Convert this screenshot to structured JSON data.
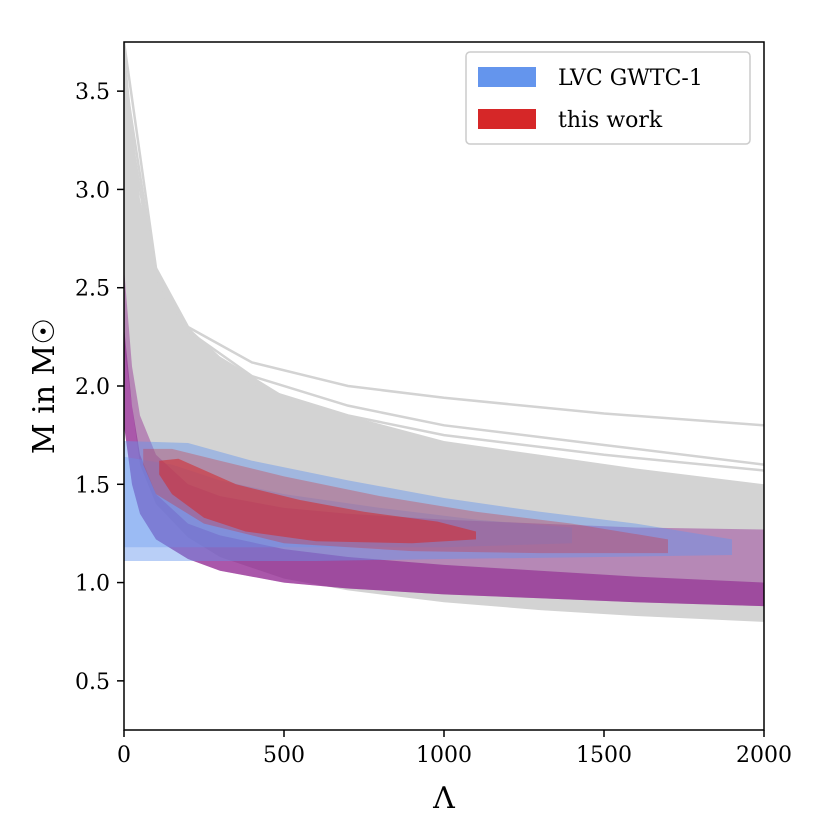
{
  "chart_data": {
    "type": "area",
    "title": "",
    "xlabel": "Λ",
    "ylabel": "M in M☉",
    "xlim": [
      0,
      2000
    ],
    "ylim": [
      0.25,
      3.75
    ],
    "xticks": [
      0,
      500,
      1000,
      1500,
      2000
    ],
    "yticks": [
      0.5,
      1.0,
      1.5,
      2.0,
      2.5,
      3.0,
      3.5
    ],
    "xtick_labels": [
      "0",
      "500",
      "1000",
      "1500",
      "2000"
    ],
    "ytick_labels": [
      "0.5",
      "1.0",
      "1.5",
      "2.0",
      "2.5",
      "3.0",
      "3.5"
    ],
    "legend_position": "top-right",
    "legend": [
      {
        "label": "LVC GWTC-1",
        "color": "#6495ed"
      },
      {
        "label": "this work",
        "color": "#d62728"
      }
    ],
    "series": [
      {
        "name": "EOS prior band (grey)",
        "color": "#d3d3d3",
        "upper": {
          "x": [
            0,
            50,
            100,
            200,
            300,
            500,
            700,
            1000,
            1300,
            1600,
            2000
          ],
          "y": [
            3.75,
            2.95,
            2.6,
            2.3,
            2.15,
            1.95,
            1.85,
            1.72,
            1.65,
            1.58,
            1.5
          ]
        },
        "lower": {
          "x": [
            0,
            50,
            100,
            200,
            300,
            500,
            700,
            1000,
            1300,
            1600,
            2000
          ],
          "y": [
            2.2,
            1.6,
            1.4,
            1.23,
            1.13,
            1.02,
            0.96,
            0.9,
            0.86,
            0.83,
            0.8
          ]
        },
        "stiff_lines": [
          {
            "x": [
              0,
              100,
              200,
              400,
              700,
              1000,
              1500,
              2000
            ],
            "y": [
              3.75,
              2.6,
              2.3,
              2.12,
              2.0,
              1.94,
              1.86,
              1.8
            ]
          },
          {
            "x": [
              0,
              100,
              200,
              400,
              700,
              1000,
              1500,
              2000
            ],
            "y": [
              3.6,
              2.55,
              2.28,
              2.05,
              1.9,
              1.8,
              1.7,
              1.6
            ]
          },
          {
            "x": [
              0,
              100,
              200,
              400,
              700,
              1000,
              1500,
              2000
            ],
            "y": [
              3.5,
              2.5,
              2.25,
              2.0,
              1.85,
              1.75,
              1.65,
              1.57
            ]
          }
        ]
      },
      {
        "name": "EOS posterior band (purple)",
        "color": "#8b1a8b",
        "upper": {
          "x": [
            0,
            25,
            50,
            100,
            200,
            300,
            500,
            700,
            1000,
            1300,
            1600,
            2000
          ],
          "y": [
            2.6,
            2.1,
            1.85,
            1.65,
            1.5,
            1.44,
            1.38,
            1.35,
            1.32,
            1.3,
            1.28,
            1.27
          ]
        },
        "core_upper": {
          "x": [
            0,
            25,
            50,
            100,
            200,
            300,
            500,
            700,
            1000,
            1300,
            1600,
            2000
          ],
          "y": [
            2.3,
            1.9,
            1.65,
            1.45,
            1.3,
            1.24,
            1.17,
            1.13,
            1.09,
            1.06,
            1.03,
            1.0
          ]
        },
        "lower": {
          "x": [
            0,
            25,
            50,
            100,
            200,
            300,
            500,
            700,
            1000,
            1300,
            1600,
            2000
          ],
          "y": [
            1.8,
            1.5,
            1.35,
            1.22,
            1.12,
            1.06,
            1.0,
            0.97,
            0.94,
            0.92,
            0.9,
            0.88
          ]
        }
      },
      {
        "name": "LVC GWTC-1",
        "color": "#6495ed",
        "outer": {
          "x": [
            0,
            0,
            200,
            400,
            700,
            1000,
            1300,
            1600,
            1900,
            1900,
            1500,
            1000,
            600,
            300,
            0
          ],
          "y": [
            1.11,
            1.72,
            1.71,
            1.62,
            1.52,
            1.43,
            1.36,
            1.3,
            1.22,
            1.14,
            1.13,
            1.12,
            1.11,
            1.11,
            1.11
          ]
        },
        "inner": {
          "x": [
            0,
            0,
            150,
            300,
            500,
            800,
            1100,
            1400,
            1400,
            1000,
            600,
            300,
            0
          ],
          "y": [
            1.18,
            1.64,
            1.6,
            1.52,
            1.45,
            1.38,
            1.32,
            1.28,
            1.2,
            1.18,
            1.18,
            1.18,
            1.18
          ]
        }
      },
      {
        "name": "this work",
        "color": "#d62728",
        "outer": {
          "x": [
            60,
            150,
            300,
            500,
            800,
            1100,
            1400,
            1700,
            1700,
            1300,
            900,
            500,
            250,
            100,
            60
          ],
          "y": [
            1.68,
            1.68,
            1.62,
            1.54,
            1.44,
            1.36,
            1.3,
            1.22,
            1.15,
            1.15,
            1.16,
            1.2,
            1.3,
            1.45,
            1.6
          ]
        },
        "inner": {
          "x": [
            110,
            170,
            350,
            550,
            750,
            980,
            1100,
            1100,
            900,
            600,
            380,
            250,
            150,
            110
          ],
          "y": [
            1.62,
            1.63,
            1.5,
            1.42,
            1.36,
            1.31,
            1.26,
            1.22,
            1.2,
            1.21,
            1.26,
            1.33,
            1.45,
            1.55
          ]
        }
      }
    ]
  }
}
